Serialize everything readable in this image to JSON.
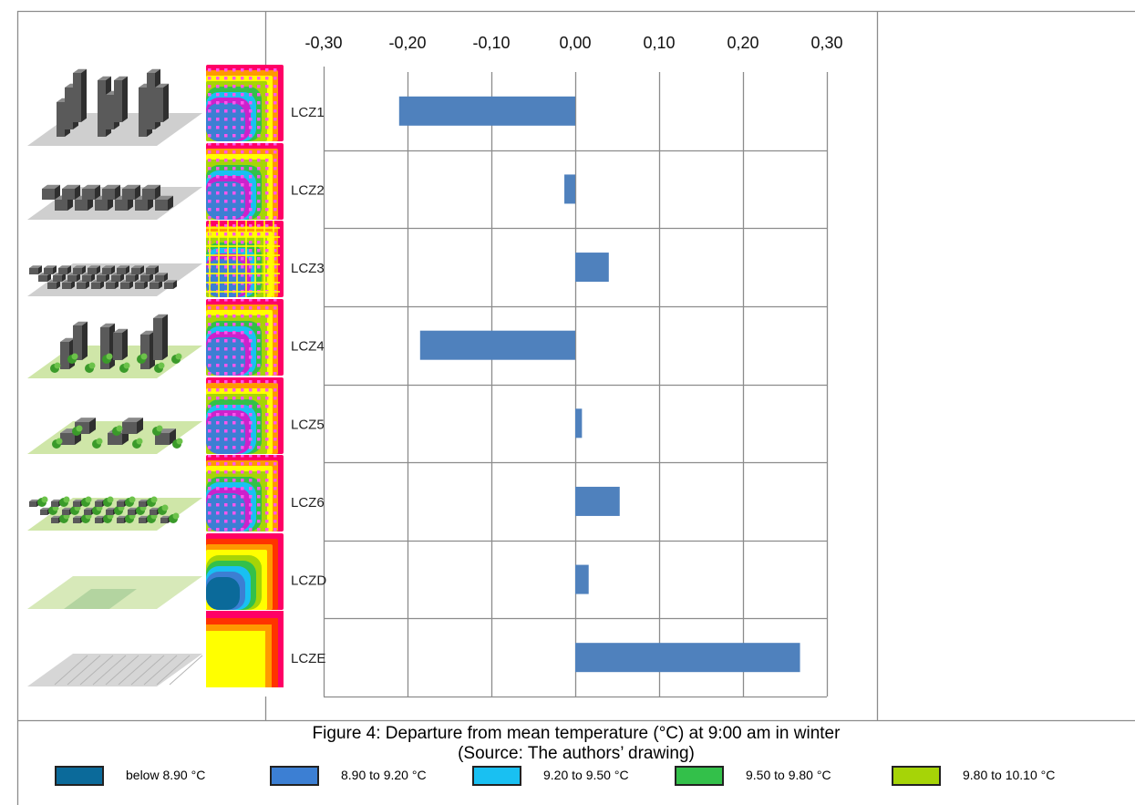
{
  "chart_data": {
    "type": "bar",
    "orientation": "horizontal",
    "categories": [
      "LCZ1",
      "LCZ2",
      "LCZ3",
      "LCZ4",
      "LCZ5",
      "LCZ6",
      "LCZD",
      "LCZE"
    ],
    "values": [
      -0.21,
      -0.013,
      0.04,
      -0.185,
      0.008,
      0.053,
      0.016,
      0.268
    ],
    "xlim": [
      -0.3,
      0.3
    ],
    "x_ticks": [
      "-0,30",
      "-0,20",
      "-0,10",
      "0,00",
      "0,10",
      "0,20",
      "0,30"
    ],
    "x_axis_position": "top",
    "grid": true,
    "bar_color": "#4f81bd"
  },
  "caption": {
    "line1": "Figure 4: Departure from mean temperature (°C) at 9:00 am in winter",
    "line2": "(Source: The authors’ drawing)"
  },
  "legend": [
    {
      "label": "below 8.90 °C",
      "color": "#0b6a9a"
    },
    {
      "label": "8.90 to 9.20 °C",
      "color": "#3c7fd3"
    },
    {
      "label": "9.20 to 9.50 °C",
      "color": "#19c0f2"
    },
    {
      "label": "9.50 to 9.80 °C",
      "color": "#33c04a"
    },
    {
      "label": "9.80 to 10.10 °C",
      "color": "#a6d407"
    }
  ],
  "lcz_illustrations": [
    "compact high-rise",
    "compact mid-rise",
    "compact low-rise",
    "open high-rise",
    "open mid-rise",
    "open low-rise",
    "low plants",
    "bare rock or paved"
  ],
  "thermal_map_palette": [
    "#0b6a9a",
    "#3c7fd3",
    "#19c0f2",
    "#33c04a",
    "#a6d407",
    "#ffff00",
    "#ff9900",
    "#ff3300",
    "#ff0066",
    "#cc22cc"
  ]
}
